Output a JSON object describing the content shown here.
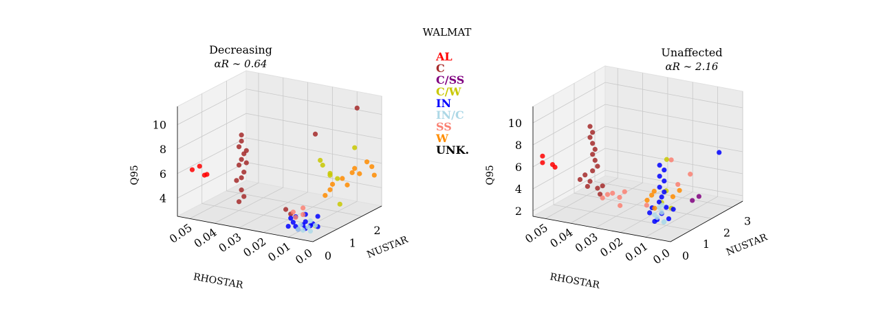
{
  "figure_title": "WALMAT",
  "legend": [
    {
      "label": "AL",
      "color": "#ff0000"
    },
    {
      "label": "C",
      "color": "#a52a2a"
    },
    {
      "label": "C/SS",
      "color": "#800080"
    },
    {
      "label": "C/W",
      "color": "#c8c800"
    },
    {
      "label": "IN",
      "color": "#0000ff"
    },
    {
      "label": "IN/C",
      "color": "#add8e6"
    },
    {
      "label": "SS",
      "color": "#fa8072"
    },
    {
      "label": "W",
      "color": "#ff8c00"
    },
    {
      "label": "UNK.",
      "color": "#000000"
    }
  ],
  "chart_data": [
    {
      "type": "scatter",
      "title": "Decreasing",
      "subtitle": "αR ∼ 0.64",
      "xlabel": "RHOSTAR",
      "ylabel": "NUSTAR",
      "zlabel": "Q95",
      "xticks": [
        "0.05",
        "0.04",
        "0.03",
        "0.02",
        "0.01",
        "0.0"
      ],
      "yticks": [
        "0",
        "1",
        "2"
      ],
      "zticks": [
        "4",
        "6",
        "8",
        "10"
      ],
      "xlim": [
        0.0,
        0.055
      ],
      "ylim": [
        0,
        2.8
      ],
      "zlim": [
        2.5,
        11.5
      ],
      "series": [
        {
          "name": "AL",
          "points": [
            [
              0.05,
              0.1,
              6.4
            ],
            [
              0.047,
              0.1,
              6.8
            ],
            [
              0.046,
              0.2,
              6.0
            ],
            [
              0.045,
              0.2,
              6.1
            ]
          ]
        },
        {
          "name": "C",
          "points": [
            [
              0.03,
              0.1,
              10.0
            ],
            [
              0.03,
              0.1,
              9.5
            ],
            [
              0.031,
              0.1,
              9.0
            ],
            [
              0.029,
              0.1,
              8.5
            ],
            [
              0.03,
              0.1,
              8.0
            ],
            [
              0.031,
              0.1,
              7.5
            ],
            [
              0.029,
              0.1,
              7.0
            ],
            [
              0.03,
              0.1,
              6.5
            ],
            [
              0.032,
              0.1,
              6.2
            ],
            [
              0.028,
              0.1,
              7.8
            ],
            [
              0.028,
              0.1,
              8.8
            ],
            [
              0.03,
              0.1,
              5.5
            ],
            [
              0.029,
              0.1,
              5.0
            ],
            [
              0.031,
              0.1,
              4.5
            ],
            [
              0.005,
              0.6,
              10.5
            ],
            [
              0.004,
              2.2,
              11.0
            ],
            [
              0.012,
              0.3,
              4.0
            ],
            [
              0.014,
              0.3,
              4.3
            ]
          ]
        },
        {
          "name": "C/W",
          "points": [
            [
              0.006,
              0.9,
              8.0
            ],
            [
              0.006,
              1.0,
              7.5
            ],
            [
              0.004,
              1.1,
              6.8
            ],
            [
              0.005,
              1.2,
              6.5
            ],
            [
              0.003,
              1.3,
              6.2
            ],
            [
              0.003,
              2.0,
              8.0
            ],
            [
              0.002,
              0.3,
              3.4
            ],
            [
              0.003,
              1.4,
              4.0
            ]
          ]
        },
        {
          "name": "IN",
          "points": [
            [
              0.01,
              0.2,
              3.5
            ],
            [
              0.009,
              0.2,
              3.2
            ],
            [
              0.008,
              0.2,
              3.0
            ],
            [
              0.007,
              0.3,
              3.3
            ],
            [
              0.006,
              0.3,
              3.6
            ],
            [
              0.009,
              0.2,
              4.0
            ],
            [
              0.011,
              0.2,
              3.8
            ],
            [
              0.005,
              0.4,
              3.2
            ],
            [
              0.004,
              0.4,
              3.4
            ],
            [
              0.003,
              0.5,
              3.1
            ],
            [
              0.006,
              0.3,
              4.2
            ],
            [
              0.012,
              0.2,
              3.1
            ],
            [
              0.007,
              0.4,
              2.9
            ],
            [
              0.004,
              0.6,
              3.8
            ]
          ]
        },
        {
          "name": "IN/C",
          "points": [
            [
              0.006,
              0.2,
              3.0
            ],
            [
              0.005,
              0.3,
              3.2
            ],
            [
              0.007,
              0.2,
              3.4
            ],
            [
              0.004,
              0.3,
              2.9
            ],
            [
              0.005,
              0.4,
              3.6
            ],
            [
              0.008,
              0.2,
              3.0
            ],
            [
              0.003,
              0.4,
              3.3
            ]
          ]
        },
        {
          "name": "SS",
          "points": [
            [
              0.01,
              0.3,
              3.8
            ],
            [
              0.011,
              0.3,
              4.2
            ],
            [
              0.008,
              0.4,
              4.0
            ],
            [
              0.009,
              0.5,
              4.4
            ]
          ]
        },
        {
          "name": "W",
          "points": [
            [
              0.004,
              1.2,
              5.8
            ],
            [
              0.003,
              1.5,
              6.0
            ],
            [
              0.002,
              1.8,
              6.2
            ],
            [
              0.003,
              2.0,
              6.3
            ],
            [
              0.001,
              2.3,
              6.6
            ],
            [
              0.002,
              1.6,
              5.4
            ],
            [
              0.003,
              1.0,
              5.6
            ],
            [
              0.001,
              2.5,
              6.0
            ],
            [
              0.004,
              0.9,
              5.2
            ],
            [
              0.002,
              2.1,
              5.8
            ],
            [
              0.001,
              2.6,
              5.2
            ]
          ]
        }
      ]
    },
    {
      "type": "scatter",
      "title": "Unaffected",
      "subtitle": "αR ∼ 2.16",
      "xlabel": "RHOSTAR",
      "ylabel": "NUSTAR",
      "zlabel": "Q95",
      "xticks": [
        "0.05",
        "0.04",
        "0.03",
        "0.02",
        "0.01",
        "0.0"
      ],
      "yticks": [
        "0",
        "1",
        "2",
        "3"
      ],
      "zticks": [
        "2",
        "4",
        "6",
        "8",
        "10"
      ],
      "xlim": [
        0.0,
        0.055
      ],
      "ylim": [
        0,
        3.5
      ],
      "zlim": [
        1.5,
        11.5
      ],
      "series": [
        {
          "name": "AL",
          "points": [
            [
              0.052,
              0.1,
              7.0
            ],
            [
              0.052,
              0.1,
              6.4
            ],
            [
              0.048,
              0.1,
              6.4
            ],
            [
              0.047,
              0.1,
              6.2
            ]
          ]
        },
        {
          "name": "C",
          "points": [
            [
              0.033,
              0.1,
              10.5
            ],
            [
              0.032,
              0.1,
              10.0
            ],
            [
              0.033,
              0.1,
              9.5
            ],
            [
              0.032,
              0.1,
              9.0
            ],
            [
              0.031,
              0.1,
              8.5
            ],
            [
              0.032,
              0.1,
              8.0
            ],
            [
              0.031,
              0.1,
              7.5
            ],
            [
              0.03,
              0.1,
              7.0
            ],
            [
              0.032,
              0.1,
              6.5
            ],
            [
              0.035,
              0.1,
              6.0
            ],
            [
              0.033,
              0.1,
              5.5
            ],
            [
              0.03,
              0.1,
              5.0
            ],
            [
              0.028,
              0.1,
              5.3
            ],
            [
              0.034,
              0.1,
              5.0
            ],
            [
              0.037,
              0.1,
              5.5
            ],
            [
              0.029,
              0.1,
              4.5
            ]
          ]
        },
        {
          "name": "C/SS",
          "points": [
            [
              0.002,
              1.3,
              3.8
            ],
            [
              0.001,
              1.5,
              4.0
            ]
          ]
        },
        {
          "name": "C/W",
          "points": [
            [
              0.004,
              0.3,
              8.5
            ],
            [
              0.005,
              0.4,
              5.5
            ],
            [
              0.006,
              0.3,
              4.5
            ],
            [
              0.003,
              0.4,
              4.0
            ]
          ]
        },
        {
          "name": "IN",
          "points": [
            [
              0.006,
              0.2,
              8.0
            ],
            [
              0.005,
              0.3,
              7.5
            ],
            [
              0.006,
              0.2,
              7.0
            ],
            [
              0.005,
              0.3,
              6.5
            ],
            [
              0.006,
              0.2,
              6.0
            ],
            [
              0.005,
              0.3,
              5.5
            ],
            [
              0.006,
              0.3,
              5.0
            ],
            [
              0.007,
              0.3,
              4.5
            ],
            [
              0.005,
              0.4,
              4.0
            ],
            [
              0.006,
              0.3,
              3.5
            ],
            [
              0.007,
              0.2,
              3.0
            ],
            [
              0.008,
              0.2,
              2.8
            ],
            [
              0.004,
              0.4,
              3.0
            ],
            [
              0.009,
              0.2,
              4.0
            ],
            [
              0.01,
              0.2,
              3.5
            ],
            [
              0.003,
              0.5,
              3.8
            ],
            [
              0.002,
              2.6,
              6.8
            ]
          ]
        },
        {
          "name": "IN/C",
          "points": [
            [
              0.007,
              0.2,
              3.2
            ],
            [
              0.006,
              0.3,
              3.6
            ],
            [
              0.007,
              0.3,
              4.0
            ],
            [
              0.005,
              0.3,
              2.8
            ],
            [
              0.008,
              0.2,
              3.4
            ],
            [
              0.006,
              0.4,
              2.6
            ],
            [
              0.005,
              0.2,
              4.4
            ]
          ]
        },
        {
          "name": "SS",
          "points": [
            [
              0.028,
              0.1,
              4.2
            ],
            [
              0.026,
              0.1,
              4.6
            ],
            [
              0.024,
              0.1,
              4.8
            ],
            [
              0.022,
              0.2,
              4.4
            ],
            [
              0.02,
              0.2,
              5.0
            ],
            [
              0.021,
              0.1,
              3.8
            ],
            [
              0.012,
              0.3,
              4.0
            ],
            [
              0.003,
              0.4,
              8.4
            ],
            [
              0.002,
              0.6,
              6.0
            ],
            [
              0.002,
              1.2,
              6.3
            ]
          ]
        },
        {
          "name": "W",
          "points": [
            [
              0.01,
              0.3,
              5.0
            ],
            [
              0.011,
              0.2,
              4.6
            ],
            [
              0.009,
              0.3,
              5.4
            ],
            [
              0.004,
              0.6,
              4.8
            ],
            [
              0.003,
              0.8,
              5.2
            ],
            [
              0.008,
              0.2,
              4.0
            ]
          ]
        }
      ]
    }
  ]
}
